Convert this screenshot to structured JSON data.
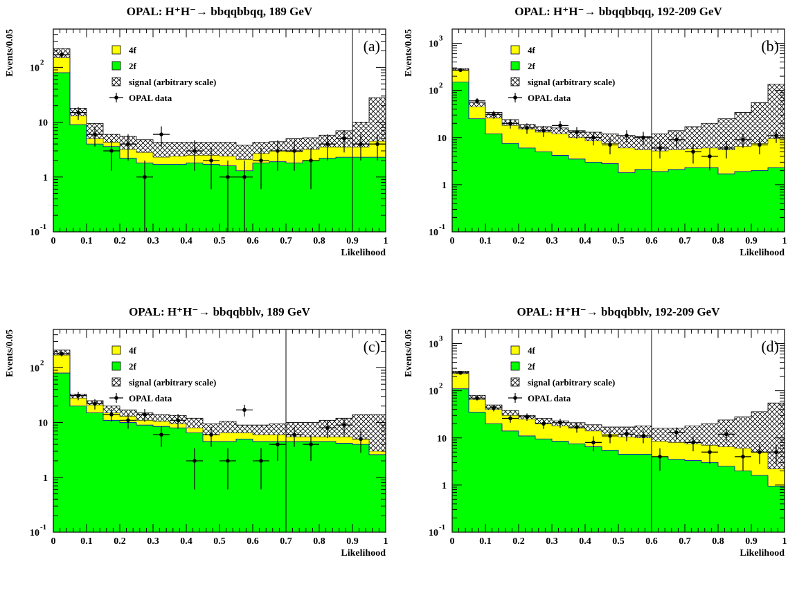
{
  "colors": {
    "four_f": "#ffff00",
    "two_f": "#00ff00",
    "outline": "#0000cc",
    "text": "#000000"
  },
  "chart_data": [
    {
      "id": "a",
      "type": "bar",
      "title": "OPAL: H⁺H⁻→ bbqqbbqq, 189 GeV",
      "panel_label": "(a)",
      "xlabel": "Likelihood",
      "ylabel": "Events/0.05",
      "log_scale": true,
      "xlim": [
        0,
        1
      ],
      "ylim": [
        0.1,
        500
      ],
      "x_ticks": [
        "0",
        "0.1",
        "0.2",
        "0.3",
        "0.4",
        "0.5",
        "0.6",
        "0.7",
        "0.8",
        "0.9",
        "1"
      ],
      "y_ticks": [
        {
          "v": 0.1,
          "base": "10",
          "exp": "-1"
        },
        {
          "v": 1,
          "base": "1",
          "exp": ""
        },
        {
          "v": 10,
          "base": "10",
          "exp": ""
        },
        {
          "v": 100,
          "base": "10",
          "exp": "2"
        }
      ],
      "cut": 0.9,
      "legend": [
        "4f",
        "2f",
        "signal (arbitrary scale)",
        "OPAL data"
      ],
      "bin_width": 0.05,
      "two_f": [
        80,
        9,
        4,
        3.6,
        2.2,
        1.8,
        1.7,
        1.7,
        1.8,
        1.7,
        1.6,
        1.3,
        1.8,
        1.9,
        1.8,
        2,
        2.2,
        2.3,
        2.3,
        2.3
      ],
      "four_f": [
        150,
        13,
        5,
        4.3,
        3.2,
        2.8,
        2.3,
        2.4,
        2.5,
        2.5,
        2.4,
        2.1,
        2.7,
        3,
        2.9,
        3.2,
        3.5,
        3.5,
        3.5,
        4.5
      ],
      "signal": [
        220,
        18,
        9.5,
        6,
        5.5,
        4.8,
        4.3,
        4.3,
        4.3,
        4.3,
        4.3,
        3.8,
        4.3,
        4.4,
        5,
        5.2,
        5.8,
        7,
        10,
        28
      ],
      "data": [
        {
          "x": 0.025,
          "y": 170,
          "lo": 150,
          "hi": 195
        },
        {
          "x": 0.075,
          "y": 15,
          "lo": 11,
          "hi": 19
        },
        {
          "x": 0.125,
          "y": 6,
          "lo": 3.6,
          "hi": 8.4
        },
        {
          "x": 0.175,
          "y": 3,
          "lo": 1.3,
          "hi": 4.7
        },
        {
          "x": 0.225,
          "y": 4,
          "lo": 2,
          "hi": 6
        },
        {
          "x": 0.275,
          "y": 1,
          "lo": 0.1,
          "hi": 2
        },
        {
          "x": 0.325,
          "y": 6,
          "lo": 3.6,
          "hi": 8.4
        },
        {
          "x": 0.425,
          "y": 3,
          "lo": 1.3,
          "hi": 4.7
        },
        {
          "x": 0.475,
          "y": 2,
          "lo": 0.6,
          "hi": 3.4
        },
        {
          "x": 0.525,
          "y": 1,
          "lo": 0.1,
          "hi": 2
        },
        {
          "x": 0.575,
          "y": 1,
          "lo": 0.1,
          "hi": 2
        },
        {
          "x": 0.625,
          "y": 2,
          "lo": 0.6,
          "hi": 3.4
        },
        {
          "x": 0.675,
          "y": 3,
          "lo": 1.3,
          "hi": 4.7
        },
        {
          "x": 0.725,
          "y": 3,
          "lo": 1.3,
          "hi": 4.7
        },
        {
          "x": 0.775,
          "y": 2,
          "lo": 0.6,
          "hi": 3.4
        },
        {
          "x": 0.825,
          "y": 4,
          "lo": 2,
          "hi": 6
        },
        {
          "x": 0.875,
          "y": 5,
          "lo": 2.8,
          "hi": 7.2
        },
        {
          "x": 0.925,
          "y": 4,
          "lo": 2,
          "hi": 6
        },
        {
          "x": 0.975,
          "y": 4,
          "lo": 2,
          "hi": 6
        }
      ]
    },
    {
      "id": "b",
      "type": "bar",
      "title": "OPAL: H⁺H⁻→ bbqqbbqq, 192-209 GeV",
      "panel_label": "(b)",
      "xlabel": "Likelihood",
      "ylabel": "Events/0.05",
      "log_scale": true,
      "xlim": [
        0,
        1
      ],
      "ylim": [
        0.1,
        2000
      ],
      "x_ticks": [
        "0",
        "0.1",
        "0.2",
        "0.3",
        "0.4",
        "0.5",
        "0.6",
        "0.7",
        "0.8",
        "0.9",
        "1"
      ],
      "y_ticks": [
        {
          "v": 0.1,
          "base": "10",
          "exp": "-1"
        },
        {
          "v": 1,
          "base": "1",
          "exp": ""
        },
        {
          "v": 10,
          "base": "10",
          "exp": ""
        },
        {
          "v": 100,
          "base": "10",
          "exp": "2"
        },
        {
          "v": 1000,
          "base": "10",
          "exp": "3"
        }
      ],
      "cut": 0.6,
      "legend": [
        "4f",
        "2f",
        "signal (arbitrary scale)",
        "OPAL data"
      ],
      "bin_width": 0.05,
      "two_f": [
        150,
        25,
        12,
        7.5,
        6,
        5,
        4.2,
        3.5,
        3,
        2.8,
        1.8,
        2.1,
        1.9,
        2.1,
        2.3,
        2.3,
        1.7,
        1.9,
        2,
        2.3
      ],
      "four_f": [
        270,
        45,
        26,
        18,
        15,
        13,
        12,
        10,
        8.5,
        7.5,
        6,
        5.5,
        5.2,
        5.5,
        5.8,
        6,
        5.5,
        6.5,
        7.5,
        9.5
      ],
      "signal": [
        290,
        55,
        34,
        24,
        19,
        17,
        16,
        14,
        13,
        12,
        11,
        10.5,
        12,
        14,
        17,
        20,
        25,
        34,
        55,
        135
      ],
      "data": [
        {
          "x": 0.025,
          "y": 270,
          "lo": 254,
          "hi": 286
        },
        {
          "x": 0.075,
          "y": 60,
          "lo": 52,
          "hi": 68
        },
        {
          "x": 0.125,
          "y": 31,
          "lo": 25,
          "hi": 37
        },
        {
          "x": 0.175,
          "y": 20,
          "lo": 15.5,
          "hi": 24.5
        },
        {
          "x": 0.225,
          "y": 16,
          "lo": 12,
          "hi": 20
        },
        {
          "x": 0.275,
          "y": 14,
          "lo": 10.3,
          "hi": 17.7
        },
        {
          "x": 0.325,
          "y": 18,
          "lo": 13.8,
          "hi": 22.2
        },
        {
          "x": 0.375,
          "y": 13,
          "lo": 9.4,
          "hi": 16.6
        },
        {
          "x": 0.425,
          "y": 10,
          "lo": 6.8,
          "hi": 13.2
        },
        {
          "x": 0.475,
          "y": 7,
          "lo": 4.4,
          "hi": 9.6
        },
        {
          "x": 0.525,
          "y": 11,
          "lo": 7.7,
          "hi": 14.3
        },
        {
          "x": 0.575,
          "y": 10,
          "lo": 6.8,
          "hi": 13.2
        },
        {
          "x": 0.625,
          "y": 6,
          "lo": 3.6,
          "hi": 8.4
        },
        {
          "x": 0.675,
          "y": 9,
          "lo": 6,
          "hi": 12
        },
        {
          "x": 0.725,
          "y": 5,
          "lo": 2.8,
          "hi": 7.2
        },
        {
          "x": 0.775,
          "y": 4,
          "lo": 2,
          "hi": 6
        },
        {
          "x": 0.825,
          "y": 6,
          "lo": 3.6,
          "hi": 8.4
        },
        {
          "x": 0.875,
          "y": 9,
          "lo": 6,
          "hi": 12
        },
        {
          "x": 0.925,
          "y": 7,
          "lo": 4.4,
          "hi": 9.6
        },
        {
          "x": 0.975,
          "y": 11,
          "lo": 7.7,
          "hi": 14.3
        }
      ]
    },
    {
      "id": "c",
      "type": "bar",
      "title": "OPAL: H⁺H⁻→ bbqqbblν, 189 GeV",
      "panel_label": "(c)",
      "xlabel": "Likelihood",
      "ylabel": "Events/0.05",
      "log_scale": true,
      "xlim": [
        0,
        1
      ],
      "ylim": [
        0.1,
        500
      ],
      "x_ticks": [
        "0",
        "0.1",
        "0.2",
        "0.3",
        "0.4",
        "0.5",
        "0.6",
        "0.7",
        "0.8",
        "0.9",
        "1"
      ],
      "y_ticks": [
        {
          "v": 0.1,
          "base": "10",
          "exp": "-1"
        },
        {
          "v": 1,
          "base": "1",
          "exp": ""
        },
        {
          "v": 10,
          "base": "10",
          "exp": ""
        },
        {
          "v": 100,
          "base": "10",
          "exp": "2"
        }
      ],
      "cut": 0.7,
      "legend": [
        "4f",
        "2f",
        "signal (arbitrary scale)",
        "OPAL data"
      ],
      "bin_width": 0.05,
      "two_f": [
        80,
        20,
        15,
        11,
        10,
        9,
        8.5,
        8,
        6.5,
        4.5,
        4.5,
        5,
        4.5,
        4.5,
        4.5,
        4.5,
        4.5,
        4.2,
        4,
        2.6
      ],
      "four_f": [
        170,
        28,
        21,
        15,
        13,
        11,
        10.5,
        9.5,
        8,
        6,
        6.5,
        6.5,
        6,
        6,
        5.5,
        5.5,
        5.5,
        5.5,
        5,
        3
      ],
      "signal": [
        210,
        33,
        25,
        20,
        17,
        15,
        14,
        13.5,
        12,
        9.5,
        10.5,
        9,
        9,
        9.5,
        10,
        10,
        11,
        12,
        14,
        14
      ],
      "data": [
        {
          "x": 0.025,
          "y": 180,
          "lo": 160,
          "hi": 200
        },
        {
          "x": 0.075,
          "y": 31,
          "lo": 25.5,
          "hi": 36.5
        },
        {
          "x": 0.125,
          "y": 22,
          "lo": 17.3,
          "hi": 26.7
        },
        {
          "x": 0.175,
          "y": 14,
          "lo": 10.3,
          "hi": 17.7
        },
        {
          "x": 0.225,
          "y": 11,
          "lo": 7.7,
          "hi": 14.3
        },
        {
          "x": 0.275,
          "y": 14,
          "lo": 10.3,
          "hi": 17.7
        },
        {
          "x": 0.325,
          "y": 6,
          "lo": 3.6,
          "hi": 8.4
        },
        {
          "x": 0.375,
          "y": 11,
          "lo": 7.7,
          "hi": 14.3
        },
        {
          "x": 0.425,
          "y": 2,
          "lo": 0.6,
          "hi": 3.4
        },
        {
          "x": 0.475,
          "y": 6,
          "lo": 3.6,
          "hi": 8.4
        },
        {
          "x": 0.525,
          "y": 2,
          "lo": 0.6,
          "hi": 3.4
        },
        {
          "x": 0.575,
          "y": 17,
          "lo": 12.9,
          "hi": 21.1
        },
        {
          "x": 0.625,
          "y": 2,
          "lo": 0.6,
          "hi": 3.4
        },
        {
          "x": 0.675,
          "y": 4,
          "lo": 2,
          "hi": 6
        },
        {
          "x": 0.725,
          "y": 6,
          "lo": 3.6,
          "hi": 8.4
        },
        {
          "x": 0.775,
          "y": 4,
          "lo": 2,
          "hi": 6
        },
        {
          "x": 0.825,
          "y": 8,
          "lo": 5.2,
          "hi": 10.8
        },
        {
          "x": 0.875,
          "y": 9,
          "lo": 6,
          "hi": 12
        },
        {
          "x": 0.925,
          "y": 5,
          "lo": 2.8,
          "hi": 7.2
        }
      ]
    },
    {
      "id": "d",
      "type": "bar",
      "title": "OPAL: H⁺H⁻→ bbqqbblν, 192-209 GeV",
      "panel_label": "(d)",
      "xlabel": "Likelihood",
      "ylabel": "Events/0.05",
      "log_scale": true,
      "xlim": [
        0,
        1
      ],
      "ylim": [
        0.1,
        2000
      ],
      "x_ticks": [
        "0",
        "0.1",
        "0.2",
        "0.3",
        "0.4",
        "0.5",
        "0.6",
        "0.7",
        "0.8",
        "0.9",
        "1"
      ],
      "y_ticks": [
        {
          "v": 0.1,
          "base": "10",
          "exp": "-1"
        },
        {
          "v": 1,
          "base": "1",
          "exp": ""
        },
        {
          "v": 10,
          "base": "10",
          "exp": ""
        },
        {
          "v": 100,
          "base": "10",
          "exp": "2"
        },
        {
          "v": 1000,
          "base": "10",
          "exp": "3"
        }
      ],
      "cut": 0.6,
      "legend": [
        "4f",
        "2f",
        "signal (arbitrary scale)",
        "OPAL data"
      ],
      "bin_width": 0.05,
      "two_f": [
        110,
        35,
        20,
        14,
        11,
        9.5,
        8.5,
        7.5,
        6.5,
        5.5,
        4.5,
        4.5,
        4,
        3.5,
        3.3,
        3,
        2.5,
        2,
        1.6,
        0.95
      ],
      "four_f": [
        230,
        65,
        40,
        30,
        25,
        20,
        18,
        16,
        14,
        12,
        10.5,
        10,
        8.5,
        8,
        7.5,
        7,
        6.5,
        6,
        5,
        2.2
      ],
      "signal": [
        260,
        80,
        50,
        38,
        30,
        26,
        23,
        21,
        19,
        17,
        17,
        18,
        16,
        16,
        18,
        20,
        24,
        28,
        36,
        55
      ],
      "data": [
        {
          "x": 0.025,
          "y": 240,
          "lo": 225,
          "hi": 255
        },
        {
          "x": 0.075,
          "y": 70,
          "lo": 62,
          "hi": 78
        },
        {
          "x": 0.125,
          "y": 43,
          "lo": 36.5,
          "hi": 49.5
        },
        {
          "x": 0.175,
          "y": 26,
          "lo": 21,
          "hi": 31
        },
        {
          "x": 0.225,
          "y": 28,
          "lo": 23,
          "hi": 33
        },
        {
          "x": 0.275,
          "y": 20,
          "lo": 15.5,
          "hi": 24.5
        },
        {
          "x": 0.325,
          "y": 21,
          "lo": 16.4,
          "hi": 25.6
        },
        {
          "x": 0.375,
          "y": 17,
          "lo": 12.9,
          "hi": 21.1
        },
        {
          "x": 0.425,
          "y": 8,
          "lo": 5.2,
          "hi": 10.8
        },
        {
          "x": 0.475,
          "y": 11,
          "lo": 7.7,
          "hi": 14.3
        },
        {
          "x": 0.525,
          "y": 12,
          "lo": 8.5,
          "hi": 15.5
        },
        {
          "x": 0.575,
          "y": 11,
          "lo": 7.7,
          "hi": 14.3
        },
        {
          "x": 0.625,
          "y": 4,
          "lo": 2,
          "hi": 6
        },
        {
          "x": 0.675,
          "y": 13,
          "lo": 9.4,
          "hi": 16.6
        },
        {
          "x": 0.725,
          "y": 8,
          "lo": 5.2,
          "hi": 10.8
        },
        {
          "x": 0.775,
          "y": 5,
          "lo": 2.8,
          "hi": 7.2
        },
        {
          "x": 0.825,
          "y": 12,
          "lo": 8.5,
          "hi": 15.5
        },
        {
          "x": 0.875,
          "y": 4,
          "lo": 2,
          "hi": 6
        },
        {
          "x": 0.925,
          "y": 5,
          "lo": 2.8,
          "hi": 7.2
        },
        {
          "x": 0.975,
          "y": 5,
          "lo": 2.8,
          "hi": 7.2
        }
      ]
    }
  ]
}
